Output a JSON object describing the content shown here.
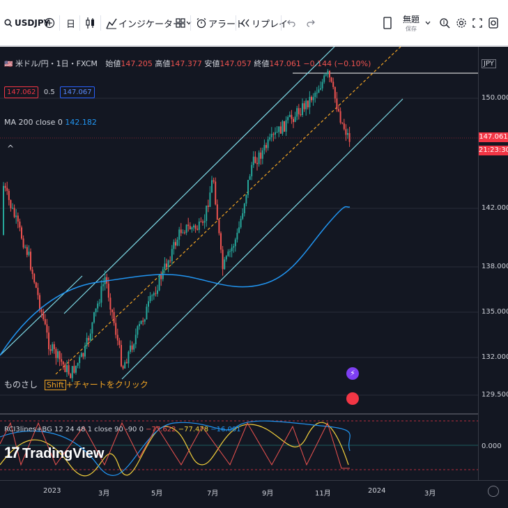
{
  "toolbar": {
    "symbol": "USDJPY",
    "interval": "日",
    "indicators_label": "インジケーター",
    "alert_label": "アラート",
    "replay_label": "リプレイ",
    "layout_name": "無題",
    "save_label": "保存"
  },
  "legend": {
    "title": "米ドル/円・1日・FXCM",
    "open_label": "始値",
    "open": "147.205",
    "high_label": "高値",
    "high": "147.377",
    "low_label": "安値",
    "low": "147.057",
    "close_label": "終値",
    "close": "147.061",
    "change": "−0.144 (−0.10%)",
    "bid": "147.062",
    "spread": "0.5",
    "ask": "147.067",
    "ma_label": "MA 200 close 0",
    "ma_value": "142.182",
    "collapse": "^",
    "rci_label": "RCI3lines+BG 12 24 48 1 close 90 -90 0",
    "rci_v1": "−77.622",
    "rci_v2": "−77.478",
    "rci_v3": "−16.001"
  },
  "hint": {
    "prefix": "ものさし",
    "key": "Shift",
    "suffix": "+チャートをクリック"
  },
  "watermark": "TradingView",
  "price_axis": {
    "currency": "JPY",
    "labels": [
      "150.000",
      "142.000",
      "138.000",
      "135.000",
      "132.000",
      "129.500"
    ],
    "last_price": "147.061",
    "countdown": "21:23:30",
    "rci_zero": "0.000"
  },
  "time_axis": {
    "labels": [
      "2023",
      "3月",
      "5月",
      "7月",
      "9月",
      "11月",
      "2024",
      "3月"
    ]
  },
  "colors": {
    "bg": "#131722",
    "up": "#26a69a",
    "down": "#ef5350",
    "ma": "#2196f3",
    "channel": "#80deea",
    "median": "#f5a623"
  }
}
